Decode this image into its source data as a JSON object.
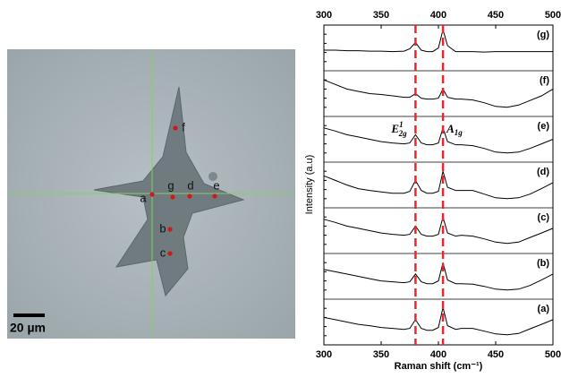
{
  "image": {
    "points": [
      "a",
      "b",
      "c",
      "d",
      "e",
      "f",
      "g"
    ],
    "scale_bar": "20 µm"
  },
  "chart_data": {
    "type": "line",
    "x_label": "Raman shift (cm⁻¹)",
    "y_label": "Intensity (a.u)",
    "xlim": [
      300,
      500
    ],
    "xticks": [
      300,
      350,
      400,
      450,
      500
    ],
    "ylim": [
      0,
      1
    ],
    "x": [
      300,
      310,
      320,
      330,
      340,
      350,
      360,
      370,
      375,
      380,
      385,
      390,
      395,
      400,
      404,
      408,
      415,
      420,
      430,
      440,
      450,
      460,
      470,
      480,
      490,
      500
    ],
    "series": [
      {
        "name": "(g)",
        "color": "#000000",
        "values": [
          0.45,
          0.45,
          0.44,
          0.44,
          0.43,
          0.43,
          0.42,
          0.43,
          0.48,
          0.62,
          0.45,
          0.42,
          0.42,
          0.5,
          0.9,
          0.55,
          0.42,
          0.42,
          0.42,
          0.41,
          0.42,
          0.42,
          0.42,
          0.42,
          0.42,
          0.42
        ]
      },
      {
        "name": "(f)",
        "color": "#000000",
        "values": [
          0.8,
          0.7,
          0.6,
          0.55,
          0.5,
          0.48,
          0.45,
          0.42,
          0.42,
          0.5,
          0.4,
          0.38,
          0.38,
          0.4,
          0.6,
          0.42,
          0.38,
          0.38,
          0.36,
          0.3,
          0.22,
          0.2,
          0.25,
          0.35,
          0.45,
          0.6
        ]
      },
      {
        "name": "(e)",
        "color": "#000000",
        "values": [
          0.75,
          0.68,
          0.6,
          0.55,
          0.5,
          0.45,
          0.42,
          0.4,
          0.42,
          0.6,
          0.42,
          0.38,
          0.38,
          0.42,
          0.75,
          0.45,
          0.38,
          0.38,
          0.36,
          0.3,
          0.22,
          0.2,
          0.22,
          0.3,
          0.4,
          0.5
        ]
      },
      {
        "name": "(d)",
        "color": "#000000",
        "values": [
          0.7,
          0.6,
          0.5,
          0.42,
          0.38,
          0.35,
          0.32,
          0.32,
          0.36,
          0.6,
          0.38,
          0.32,
          0.32,
          0.36,
          0.8,
          0.45,
          0.38,
          0.38,
          0.38,
          0.3,
          0.22,
          0.2,
          0.22,
          0.3,
          0.42,
          0.55
        ]
      },
      {
        "name": "(c)",
        "color": "#000000",
        "values": [
          0.75,
          0.68,
          0.6,
          0.55,
          0.5,
          0.45,
          0.42,
          0.4,
          0.42,
          0.6,
          0.42,
          0.38,
          0.38,
          0.42,
          0.8,
          0.45,
          0.38,
          0.4,
          0.38,
          0.32,
          0.25,
          0.22,
          0.25,
          0.35,
          0.45,
          0.55
        ]
      },
      {
        "name": "(b)",
        "color": "#000000",
        "values": [
          0.65,
          0.6,
          0.55,
          0.5,
          0.45,
          0.4,
          0.38,
          0.36,
          0.38,
          0.55,
          0.38,
          0.34,
          0.34,
          0.4,
          0.8,
          0.42,
          0.34,
          0.34,
          0.33,
          0.28,
          0.22,
          0.2,
          0.22,
          0.3,
          0.42,
          0.55
        ]
      },
      {
        "name": "(a)",
        "color": "#000000",
        "values": [
          0.6,
          0.55,
          0.5,
          0.45,
          0.42,
          0.38,
          0.36,
          0.34,
          0.36,
          0.55,
          0.36,
          0.32,
          0.32,
          0.38,
          0.82,
          0.42,
          0.34,
          0.36,
          0.36,
          0.3,
          0.24,
          0.22,
          0.25,
          0.35,
          0.45,
          0.55
        ]
      }
    ],
    "peak_lines": [
      {
        "x": 380,
        "color": "#e8282a",
        "label": {
          "base": "E",
          "sup": "1",
          "sub": "2g"
        }
      },
      {
        "x": 404,
        "color": "#e8282a",
        "label": {
          "base": "A",
          "sub": "1g"
        }
      }
    ]
  }
}
